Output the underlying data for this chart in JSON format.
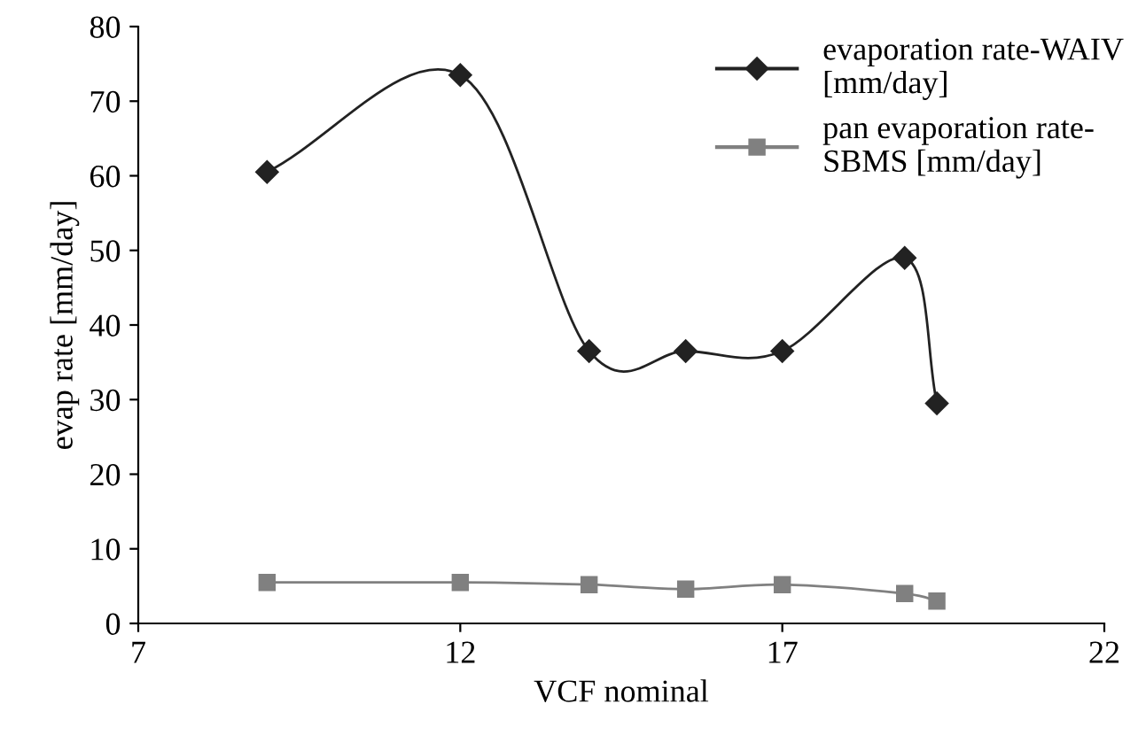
{
  "chart_data": {
    "type": "line",
    "xlabel": "VCF nominal",
    "ylabel": "evap rate [mm/day]",
    "x": [
      9,
      12,
      14,
      15.5,
      17,
      18.9,
      19.4
    ],
    "series": [
      {
        "name": "evaporation rate-WAIV\n[mm/day]",
        "color": "#222222",
        "marker": "diamond",
        "values": [
          60.5,
          73.5,
          36.5,
          36.5,
          36.5,
          49,
          29.5
        ]
      },
      {
        "name": "pan evaporation rate-\nSBMS [mm/day]",
        "color": "#808080",
        "marker": "square",
        "values": [
          5.5,
          5.5,
          5.2,
          4.6,
          5.2,
          4,
          3
        ]
      }
    ],
    "xlim": [
      7,
      22
    ],
    "xticks": [
      7,
      12,
      17,
      22
    ],
    "ylim": [
      0,
      80
    ],
    "yticks": [
      0,
      10,
      20,
      30,
      40,
      50,
      60,
      70,
      80
    ],
    "grid": false,
    "legend": "top right",
    "line_style": "solid"
  }
}
